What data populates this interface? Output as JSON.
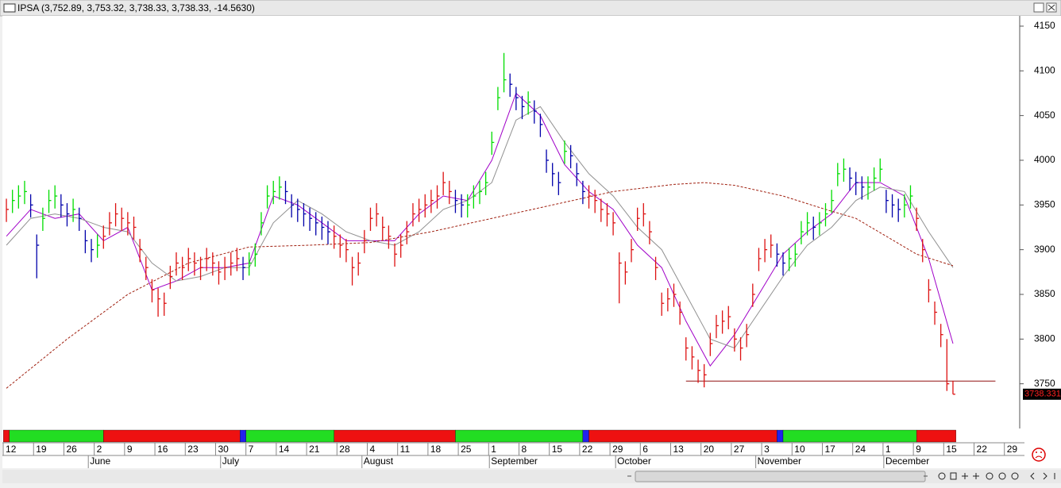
{
  "chart_data": {
    "type": "ohlc",
    "title": "IPSA (3,752.89, 3,753.32, 3,738.33, 3,738.33, -14.5630)",
    "ylim": [
      3700,
      4161.5
    ],
    "yticks": [
      3750,
      3800,
      3850,
      3900,
      3950,
      4000,
      4050,
      4100,
      4150
    ],
    "xlim": [
      -0.4,
      167
    ],
    "xticks": [
      {
        "value": 0,
        "label": "12"
      },
      {
        "value": 5,
        "label": "19"
      },
      {
        "value": 10,
        "label": "26"
      },
      {
        "value": 15,
        "label": "2"
      },
      {
        "value": 20,
        "label": "9"
      },
      {
        "value": 25,
        "label": "16"
      },
      {
        "value": 30,
        "label": "23"
      },
      {
        "value": 35,
        "label": "30"
      },
      {
        "value": 40,
        "label": "7"
      },
      {
        "value": 45,
        "label": "14"
      },
      {
        "value": 50,
        "label": "21"
      },
      {
        "value": 55,
        "label": "28"
      },
      {
        "value": 60,
        "label": "4"
      },
      {
        "value": 65,
        "label": "11"
      },
      {
        "value": 70,
        "label": "18"
      },
      {
        "value": 75,
        "label": "25"
      },
      {
        "value": 80,
        "label": "1"
      },
      {
        "value": 85,
        "label": "8"
      },
      {
        "value": 90,
        "label": "15"
      },
      {
        "value": 95,
        "label": "22"
      },
      {
        "value": 100,
        "label": "29"
      },
      {
        "value": 105,
        "label": "6"
      },
      {
        "value": 110,
        "label": "13"
      },
      {
        "value": 115,
        "label": "20"
      },
      {
        "value": 120,
        "label": "27"
      },
      {
        "value": 125,
        "label": "3"
      },
      {
        "value": 130,
        "label": "10"
      },
      {
        "value": 135,
        "label": "17"
      },
      {
        "value": 140,
        "label": "24"
      },
      {
        "value": 145,
        "label": "1"
      },
      {
        "value": 150,
        "label": "9"
      },
      {
        "value": 155,
        "label": "15"
      },
      {
        "value": 160,
        "label": "22"
      },
      {
        "value": 165,
        "label": "29"
      }
    ],
    "month_ticks": [
      {
        "value": 13.5,
        "label": "June"
      },
      {
        "value": 35.3,
        "label": "July"
      },
      {
        "value": 58.6,
        "label": "August"
      },
      {
        "value": 79.6,
        "label": "September"
      },
      {
        "value": 100.4,
        "label": "October"
      },
      {
        "value": 123.5,
        "label": "November"
      },
      {
        "value": 144.6,
        "label": "December"
      }
    ],
    "high": [
      3957,
      3967,
      3972,
      3977,
      3962,
      3917,
      3947,
      3967,
      3972,
      3962,
      3952,
      3957,
      3947,
      3922,
      3912,
      3917,
      3927,
      3942,
      3952,
      3947,
      3942,
      3937,
      3912,
      3892,
      3867,
      3857,
      3852,
      3882,
      3897,
      3892,
      3902,
      3897,
      3892,
      3902,
      3897,
      3887,
      3892,
      3897,
      3902,
      3892,
      3897,
      3907,
      3942,
      3972,
      3977,
      3982,
      3977,
      3962,
      3957,
      3952,
      3947,
      3942,
      3937,
      3932,
      3927,
      3917,
      3912,
      3892,
      3897,
      3922,
      3947,
      3952,
      3937,
      3927,
      3907,
      3917,
      3932,
      3952,
      3957,
      3962,
      3967,
      3972,
      3987,
      3977,
      3967,
      3962,
      3962,
      3972,
      3977,
      3987,
      4032,
      4082,
      4120,
      4097,
      4082,
      4072,
      4077,
      4067,
      4052,
      4012,
      3997,
      3987,
      4022,
      4017,
      3997,
      3977,
      3972,
      3967,
      3957,
      3952,
      3942,
      3897,
      3887,
      3912,
      3947,
      3952,
      3932,
      3892,
      3852,
      3857,
      3862,
      3842,
      3802,
      3792,
      3777,
      3772,
      3807,
      3827,
      3832,
      3837,
      3812,
      3802,
      3817,
      3862,
      3902,
      3912,
      3917,
      3907,
      3897,
      3902,
      3907,
      3932,
      3942,
      3937,
      3942,
      3952,
      3967,
      3997,
      4002,
      3992,
      3987,
      3982,
      3982,
      3992,
      4002,
      3967,
      3962,
      3957,
      3962,
      3972,
      3947,
      3912,
      3867,
      3842,
      3817,
      3800,
      3753.32
    ],
    "low": [
      3931,
      3941,
      3946,
      3951,
      3936,
      3868,
      3921,
      3941,
      3946,
      3936,
      3926,
      3931,
      3921,
      3896,
      3886,
      3891,
      3901,
      3916,
      3926,
      3921,
      3916,
      3911,
      3886,
      3866,
      3841,
      3825,
      3826,
      3856,
      3871,
      3866,
      3876,
      3871,
      3866,
      3876,
      3871,
      3861,
      3866,
      3871,
      3876,
      3866,
      3871,
      3881,
      3916,
      3946,
      3951,
      3956,
      3951,
      3936,
      3931,
      3926,
      3921,
      3916,
      3911,
      3906,
      3901,
      3891,
      3886,
      3860,
      3871,
      3896,
      3921,
      3926,
      3911,
      3901,
      3881,
      3891,
      3906,
      3926,
      3931,
      3936,
      3941,
      3946,
      3961,
      3951,
      3941,
      3936,
      3936,
      3946,
      3951,
      3961,
      4006,
      4056,
      4076,
      4071,
      4056,
      4046,
      4051,
      4041,
      4026,
      3986,
      3971,
      3961,
      3996,
      3991,
      3971,
      3951,
      3946,
      3941,
      3931,
      3926,
      3916,
      3840,
      3861,
      3886,
      3921,
      3926,
      3906,
      3866,
      3826,
      3831,
      3836,
      3816,
      3776,
      3766,
      3751,
      3746,
      3781,
      3801,
      3806,
      3811,
      3786,
      3776,
      3791,
      3836,
      3876,
      3886,
      3891,
      3881,
      3871,
      3876,
      3881,
      3906,
      3916,
      3911,
      3916,
      3926,
      3941,
      3971,
      3976,
      3966,
      3961,
      3956,
      3956,
      3966,
      3976,
      3941,
      3936,
      3931,
      3936,
      3946,
      3921,
      3886,
      3841,
      3816,
      3791,
      3742,
      3738.33
    ],
    "close": [
      3945,
      3955,
      3960,
      3965,
      3950,
      3905,
      3935,
      3955,
      3960,
      3950,
      3940,
      3945,
      3935,
      3910,
      3900,
      3905,
      3915,
      3930,
      3940,
      3935,
      3930,
      3925,
      3900,
      3880,
      3855,
      3845,
      3840,
      3870,
      3885,
      3880,
      3890,
      3885,
      3880,
      3890,
      3885,
      3875,
      3880,
      3885,
      3890,
      3880,
      3885,
      3895,
      3930,
      3960,
      3965,
      3970,
      3965,
      3950,
      3945,
      3940,
      3935,
      3930,
      3925,
      3920,
      3915,
      3905,
      3900,
      3880,
      3885,
      3910,
      3935,
      3940,
      3925,
      3915,
      3895,
      3905,
      3920,
      3940,
      3945,
      3950,
      3955,
      3960,
      3975,
      3965,
      3955,
      3950,
      3950,
      3960,
      3965,
      3975,
      4020,
      4070,
      4090,
      4085,
      4070,
      4060,
      4065,
      4055,
      4040,
      4000,
      3985,
      3975,
      4010,
      4005,
      3985,
      3965,
      3960,
      3955,
      3945,
      3940,
      3930,
      3885,
      3875,
      3900,
      3935,
      3940,
      3920,
      3880,
      3840,
      3845,
      3850,
      3830,
      3790,
      3780,
      3765,
      3760,
      3795,
      3815,
      3820,
      3825,
      3800,
      3790,
      3805,
      3850,
      3890,
      3900,
      3905,
      3895,
      3885,
      3890,
      3895,
      3920,
      3930,
      3925,
      3930,
      3940,
      3955,
      3985,
      3990,
      3980,
      3975,
      3970,
      3970,
      3980,
      3990,
      3955,
      3950,
      3945,
      3950,
      3960,
      3935,
      3900,
      3855,
      3830,
      3805,
      3750,
      3738.33
    ],
    "bar_colors": {
      "up": "#00dd00",
      "down": "#0000aa",
      "red": "#dd1111"
    },
    "series": [
      {
        "color": "#a000c8",
        "x": [
          0,
          4,
          8,
          12,
          16,
          20,
          24,
          28,
          32,
          36,
          40,
          44,
          48,
          52,
          56,
          60,
          64,
          68,
          72,
          76,
          80,
          84,
          88,
          92,
          96,
          100,
          104,
          108,
          112,
          116,
          120,
          124,
          128,
          132,
          136,
          140,
          144,
          148,
          152,
          156
        ],
        "values": [
          3915,
          3945,
          3935,
          3940,
          3910,
          3925,
          3855,
          3865,
          3880,
          3880,
          3885,
          3960,
          3950,
          3930,
          3910,
          3910,
          3910,
          3940,
          3960,
          3955,
          4000,
          4075,
          4050,
          3995,
          3965,
          3945,
          3905,
          3880,
          3820,
          3770,
          3805,
          3850,
          3895,
          3920,
          3940,
          3975,
          3975,
          3960,
          3890,
          3795
        ]
      },
      {
        "color": "#909090",
        "x": [
          0,
          4,
          8,
          12,
          16,
          20,
          24,
          28,
          32,
          36,
          40,
          44,
          48,
          52,
          56,
          60,
          64,
          68,
          72,
          76,
          80,
          84,
          88,
          92,
          96,
          100,
          104,
          108,
          112,
          116,
          120,
          124,
          128,
          132,
          136,
          140,
          144,
          148,
          152,
          156
        ],
        "values": [
          3905,
          3935,
          3940,
          3935,
          3925,
          3920,
          3885,
          3865,
          3870,
          3880,
          3880,
          3930,
          3955,
          3940,
          3920,
          3910,
          3905,
          3920,
          3945,
          3955,
          3975,
          4045,
          4060,
          4020,
          3985,
          3960,
          3925,
          3900,
          3850,
          3800,
          3790,
          3830,
          3870,
          3905,
          3925,
          3955,
          3970,
          3965,
          3920,
          3880
        ]
      },
      {
        "color": "#a02010",
        "dash": true,
        "x": [
          0,
          10,
          20,
          30,
          40,
          50,
          60,
          70,
          80,
          90,
          100,
          110,
          115,
          120,
          128,
          135,
          140,
          145,
          150,
          156
        ],
        "values": [
          3745,
          3800,
          3850,
          3885,
          3903,
          3905,
          3908,
          3920,
          3935,
          3950,
          3965,
          3973,
          3975,
          3972,
          3960,
          3945,
          3935,
          3915,
          3895,
          3882
        ]
      }
    ],
    "reference_line": {
      "value": 3753,
      "x": [
        112,
        163
      ],
      "color": "#901010"
    },
    "last_marker": {
      "value": 3738.331,
      "label": "3738.331"
    },
    "trend": [
      {
        "from": -0.5,
        "to": 0.5,
        "color": "#ee1111"
      },
      {
        "from": 0.5,
        "to": 16,
        "color": "#22dd22"
      },
      {
        "from": 16,
        "to": 38.5,
        "color": "#ee1111"
      },
      {
        "from": 38.5,
        "to": 39.5,
        "color": "#2222ee"
      },
      {
        "from": 39.5,
        "to": 54,
        "color": "#22dd22"
      },
      {
        "from": 54,
        "to": 74,
        "color": "#ee1111"
      },
      {
        "from": 74,
        "to": 95,
        "color": "#22dd22"
      },
      {
        "from": 95,
        "to": 96,
        "color": "#2222ee"
      },
      {
        "from": 96,
        "to": 127,
        "color": "#ee1111"
      },
      {
        "from": 127,
        "to": 128,
        "color": "#2222ee"
      },
      {
        "from": 128,
        "to": 150,
        "color": "#22dd22"
      },
      {
        "from": 150,
        "to": 156.5,
        "color": "#ee1111"
      }
    ]
  }
}
